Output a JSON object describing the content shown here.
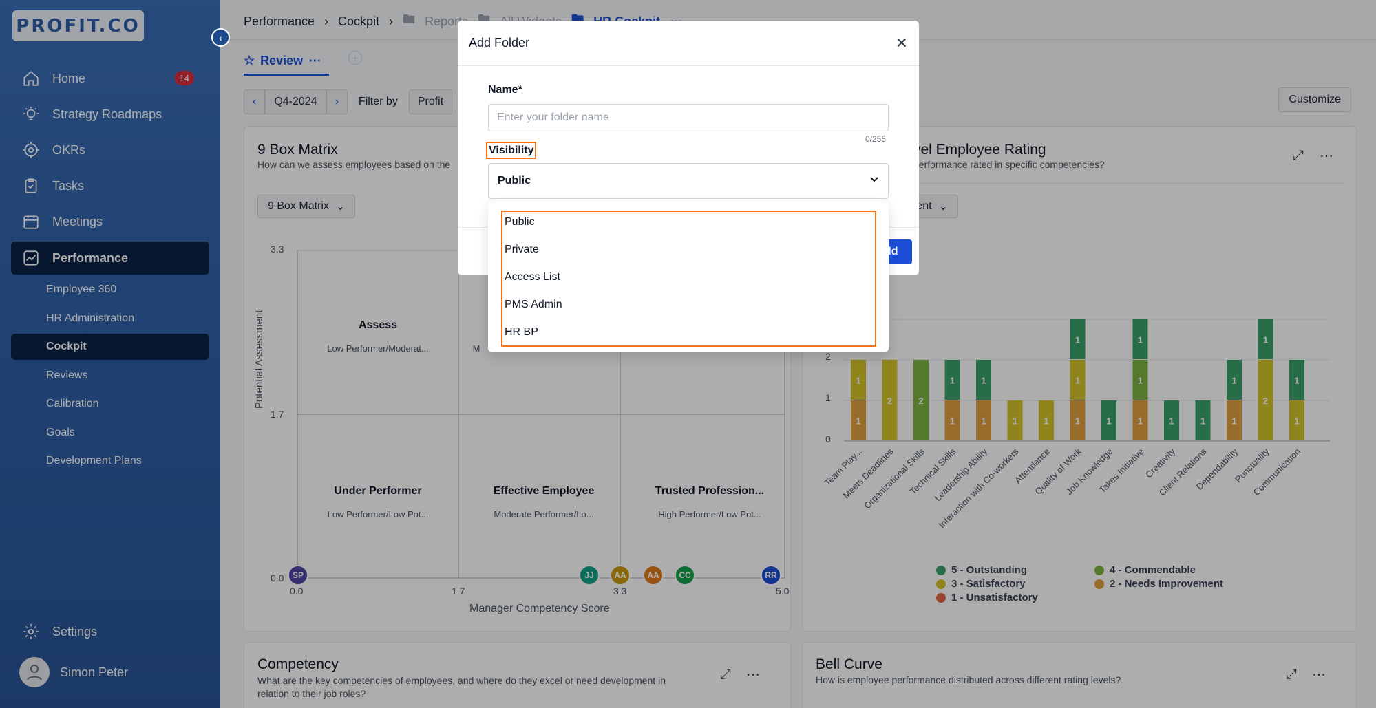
{
  "sidebar": {
    "logo": "PROFIT.CO",
    "nav": [
      {
        "label": "Home",
        "badge": "14",
        "icon": "home-icon"
      },
      {
        "label": "Strategy Roadmaps",
        "icon": "bulb-icon"
      },
      {
        "label": "OKRs",
        "icon": "target-icon"
      },
      {
        "label": "Tasks",
        "icon": "clipboard-icon"
      },
      {
        "label": "Meetings",
        "icon": "calendar-icon"
      },
      {
        "label": "Performance",
        "icon": "chart-line-icon"
      }
    ],
    "sub": [
      "Employee 360",
      "HR Administration",
      "Cockpit",
      "Reviews",
      "Calibration",
      "Goals",
      "Development Plans"
    ],
    "settings": "Settings",
    "user": "Simon Peter"
  },
  "breadcrumb": {
    "performance": "Performance",
    "cockpit": "Cockpit",
    "reports": "Reports",
    "all_widgets": "All Widgets",
    "hr_cockpit": "HR Cockpit"
  },
  "tab": {
    "review": "Review"
  },
  "filters": {
    "period": "Q4-2024",
    "filter_by": "Filter by",
    "profit": "Profit"
  },
  "customize": "Customize",
  "nine_box": {
    "title": "9 Box Matrix",
    "subtitle": "How can we assess employees based on the",
    "dropdown": "9 Box Matrix",
    "y_axis": "Potential Assessment",
    "x_axis": "Manager Competency Score",
    "y_ticks": [
      "3.3",
      "1.7",
      "0.0"
    ],
    "x_ticks": [
      "0.0",
      "1.7",
      "3.3",
      "5.0"
    ],
    "cells": [
      {
        "label": "Assess",
        "sub": "Low Performer/Moderat..."
      },
      {
        "label": "",
        "sub": "M"
      },
      {
        "label": "Under Performer",
        "sub": "Low Performer/Low Pot..."
      },
      {
        "label": "Effective Employee",
        "sub": "Moderate Performer/Lo..."
      },
      {
        "label": "Trusted Profession...",
        "sub": "High Performer/Low Pot..."
      }
    ],
    "bubbles": [
      {
        "initials": "SP",
        "color": "#4f46a8"
      },
      {
        "initials": "JJ",
        "color": "#14a38b"
      },
      {
        "initials": "AA",
        "color": "#c99a0e"
      },
      {
        "initials": "AA",
        "color": "#e07b18"
      },
      {
        "initials": "CC",
        "color": "#16a34a"
      },
      {
        "initials": "RR",
        "color": "#1d4ed8"
      }
    ]
  },
  "rating": {
    "title": "vel Employee Rating",
    "subtitle": "performance rated in specific competencies?",
    "dropdown": "ment",
    "legend": [
      {
        "label": "5 - Outstanding",
        "color": "#3aa36a"
      },
      {
        "label": "4 - Commendable",
        "color": "#7cb342"
      },
      {
        "label": "3 - Satisfactory",
        "color": "#d4c52a"
      },
      {
        "label": "2 - Needs Improvement",
        "color": "#e0a040"
      },
      {
        "label": "1 - Unsatisfactory",
        "color": "#e0664a"
      }
    ]
  },
  "chart_data": {
    "type": "bar",
    "stacked": true,
    "categories": [
      "Team Play...",
      "Meets Deadlines",
      "Organizational Skills",
      "Technical Skills",
      "Leadership Ability",
      "Interaction with Co-workers",
      "Attendance",
      "Quality of Work",
      "Job Knowledge",
      "Takes Initiative",
      "Creativity",
      "Client Relations",
      "Dependability",
      "Punctuality",
      "Communication"
    ],
    "y_ticks": [
      "0",
      "1",
      "2"
    ],
    "series": [
      {
        "name": "2 - Needs Improvement",
        "color": "#e0a040",
        "values": [
          1,
          0,
          0,
          1,
          1,
          0,
          0,
          1,
          0,
          1,
          0,
          0,
          1,
          0,
          0
        ]
      },
      {
        "name": "3 - Satisfactory",
        "color": "#d4c52a",
        "values": [
          1,
          2,
          0,
          0,
          0,
          1,
          1,
          1,
          0,
          0,
          0,
          0,
          0,
          2,
          1
        ]
      },
      {
        "name": "4 - Commendable",
        "color": "#7cb342",
        "values": [
          0,
          0,
          2,
          0,
          0,
          0,
          0,
          0,
          0,
          1,
          0,
          0,
          0,
          0,
          0
        ]
      },
      {
        "name": "5 - Outstanding",
        "color": "#3aa36a",
        "values": [
          0,
          0,
          0,
          1,
          1,
          0,
          0,
          1,
          1,
          1,
          1,
          1,
          1,
          1,
          1
        ]
      }
    ]
  },
  "competency": {
    "title": "Competency",
    "subtitle": "What are the key competencies of employees, and where do they excel or need development in relation to their job roles?"
  },
  "bell": {
    "title": "Bell Curve",
    "subtitle": "How is employee performance distributed across different rating levels?"
  },
  "modal": {
    "title": "Add Folder",
    "name_label": "Name*",
    "name_placeholder": "Enter your folder name",
    "counter": "0/255",
    "visibility_label": "Visibility",
    "visibility_value": "Public",
    "add_label": "dd",
    "options": [
      "Public",
      "Private",
      "Access List",
      "PMS Admin",
      "HR BP"
    ]
  }
}
